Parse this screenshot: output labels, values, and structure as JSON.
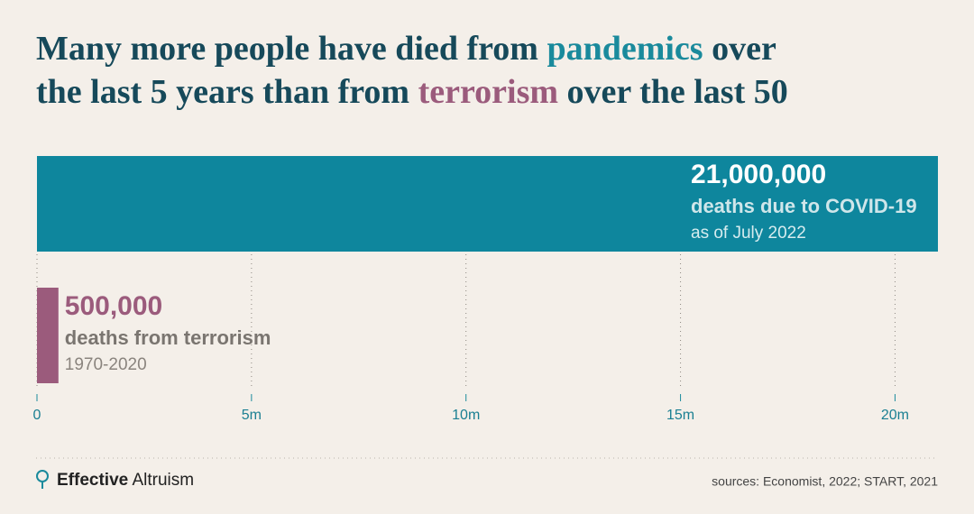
{
  "chart_data": {
    "type": "bar",
    "title_lines": [
      [
        {
          "text": "Many more people have died from ",
          "color": "#16495a"
        },
        {
          "text": "pandemics",
          "color": "#1a8a9c"
        },
        {
          "text": " over",
          "color": "#16495a"
        }
      ],
      [
        {
          "text": "the last 5 years than from ",
          "color": "#16495a"
        },
        {
          "text": "terrorism",
          "color": "#9b5b7c"
        },
        {
          "text": " over the last 50",
          "color": "#16495a"
        }
      ]
    ],
    "categories": [
      "deaths due to COVID-19",
      "deaths from terrorism"
    ],
    "values": [
      21000000,
      500000
    ],
    "value_labels": [
      "21,000,000",
      "500,000"
    ],
    "notes": [
      "as of July 2022",
      "1970-2020"
    ],
    "colors": [
      "#0e869d",
      "#9b5b7c"
    ],
    "xlim": [
      0,
      21000000
    ],
    "xticks": [
      0,
      {
        "value": 5000000,
        "label": "5m"
      },
      {
        "value": 10000000,
        "label": "10m"
      },
      {
        "value": 15000000,
        "label": "15m"
      },
      {
        "value": 20000000,
        "label": "20m"
      }
    ],
    "grid": true,
    "footer": {
      "brand_bold": "Effective",
      "brand": "Altruism",
      "source": "sources: Economist, 2022; START, 2021"
    }
  }
}
